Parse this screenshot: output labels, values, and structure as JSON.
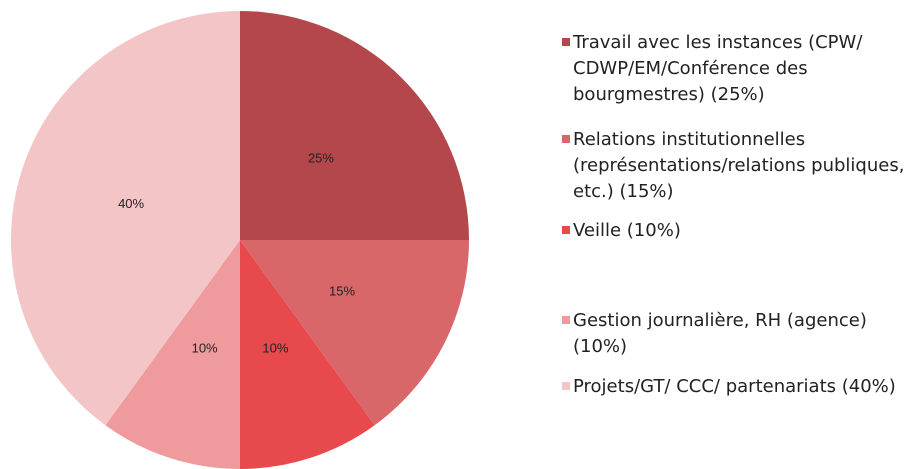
{
  "chart_data": {
    "type": "pie",
    "categories": [
      "Travail avec les instances (CPW/ CDWP/EM/Conférence des bourgmestres) (25%)",
      "Relations institutionnelles (représentations/relations publiques, etc.) (15%)",
      "Veille (10%)",
      "Gestion journalière, RH (agence) (10%)",
      "Projets/GT/ CCC/ partenariats (40%)"
    ],
    "values": [
      25,
      15,
      10,
      10,
      40
    ],
    "value_labels": [
      "25%",
      "15%",
      "10%",
      "10%",
      "40%"
    ],
    "colors": [
      "#b4474b",
      "#d9676a",
      "#e8494c",
      "#ef9a9c",
      "#f4c5c7"
    ],
    "legend": "right"
  }
}
